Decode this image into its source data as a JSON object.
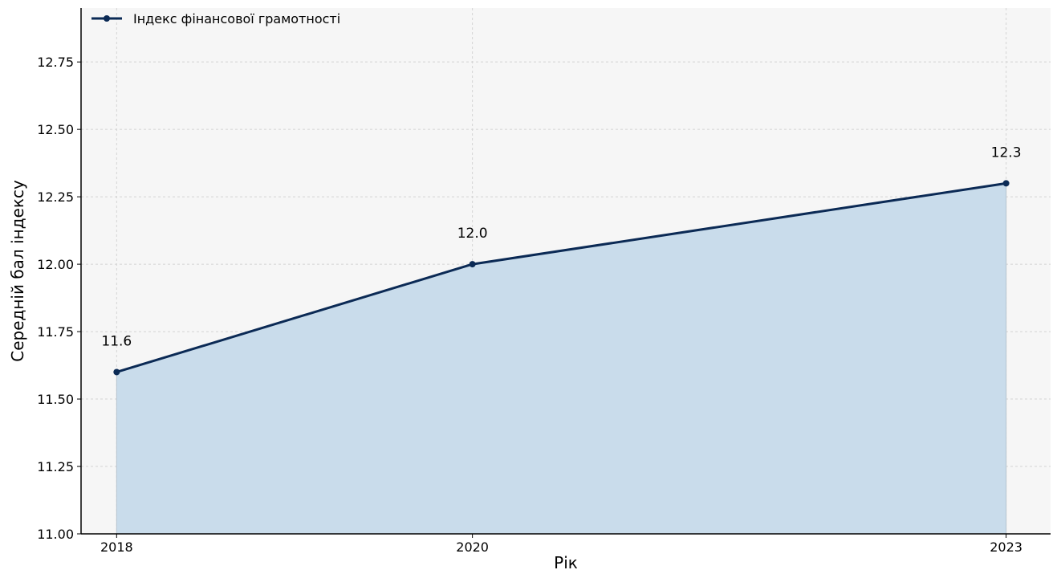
{
  "chart_data": {
    "type": "area",
    "title": "",
    "xlabel": "Рік",
    "ylabel": "Середній бал індексу",
    "categories": [
      "2018",
      "2020",
      "2023"
    ],
    "x": [
      2018,
      2020,
      2023
    ],
    "xlim": [
      2017.8,
      2023.25
    ],
    "ylim": [
      11.0,
      12.95
    ],
    "yticks": [
      11.0,
      11.25,
      11.5,
      11.75,
      12.0,
      12.25,
      12.5,
      12.75
    ],
    "ytick_labels": [
      "11.00",
      "11.25",
      "11.50",
      "11.75",
      "12.00",
      "12.25",
      "12.50",
      "12.75"
    ],
    "series": [
      {
        "name": "Індекс фінансової грамотності",
        "values": [
          11.6,
          12.0,
          12.3
        ],
        "data_labels": [
          "11.6",
          "12.0",
          "12.3"
        ],
        "line_color": "#0b2a55",
        "fill_color": "#c9dceb"
      }
    ],
    "grid": true,
    "legend": "top-left",
    "colors": {
      "plot_background": "#f6f6f6",
      "grid": "#d4d4d4",
      "axis": "#000000"
    }
  }
}
